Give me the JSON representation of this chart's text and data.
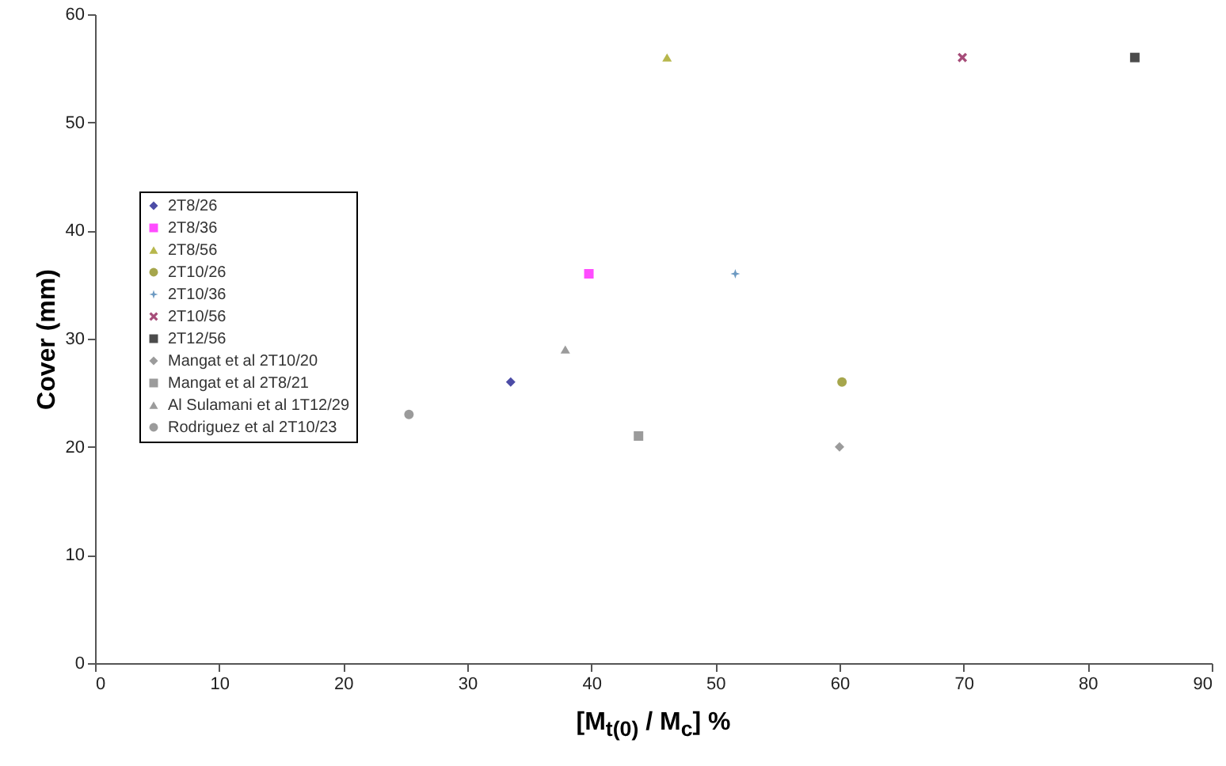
{
  "chart_data": {
    "type": "scatter",
    "xlabel": "[M$_{t(0)}$ / M$_{c}$] %",
    "ylabel": "Cover (mm)",
    "xlim": [
      0,
      90
    ],
    "ylim": [
      0,
      60
    ],
    "xticks": [
      0,
      10,
      20,
      30,
      40,
      50,
      60,
      70,
      80,
      90
    ],
    "yticks": [
      0,
      10,
      20,
      30,
      40,
      50,
      60
    ],
    "grid": false,
    "legend": "left",
    "series": [
      {
        "name": "2T8/26",
        "color": "#000080",
        "marker": "diamond",
        "x": [
          33.5
        ],
        "values": [
          26
        ]
      },
      {
        "name": "2T8/36",
        "color": "#ff00ff",
        "marker": "square",
        "x": [
          39.8
        ],
        "values": [
          36
        ]
      },
      {
        "name": "2T8/56",
        "color": "#999900",
        "marker": "triangle",
        "x": [
          46.1
        ],
        "values": [
          56
        ]
      },
      {
        "name": "2T10/26",
        "color": "#808000",
        "marker": "circle",
        "x": [
          60.2
        ],
        "values": [
          26
        ]
      },
      {
        "name": "2T10/36",
        "color": "#2f6fa8",
        "marker": "star",
        "x": [
          51.6
        ],
        "values": [
          36
        ]
      },
      {
        "name": "2T10/56",
        "color": "#800040",
        "marker": "cross",
        "x": [
          69.9
        ],
        "values": [
          56
        ]
      },
      {
        "name": "2T12/56",
        "color": "#000000",
        "marker": "square",
        "x": [
          83.8
        ],
        "values": [
          56
        ]
      },
      {
        "name": "Mangat et al 2T10/20",
        "color": "#707070",
        "marker": "diamond",
        "x": [
          60.0
        ],
        "values": [
          20
        ]
      },
      {
        "name": "Mangat et al 2T8/21",
        "color": "#707070",
        "marker": "square",
        "x": [
          43.8
        ],
        "values": [
          21
        ]
      },
      {
        "name": "Al Sulamani et al 1T12/29",
        "color": "#707070",
        "marker": "triangle",
        "x": [
          37.9
        ],
        "values": [
          29
        ]
      },
      {
        "name": "Rodriguez et al 2T10/23",
        "color": "#707070",
        "marker": "circle",
        "x": [
          25.3
        ],
        "values": [
          23
        ]
      }
    ]
  }
}
